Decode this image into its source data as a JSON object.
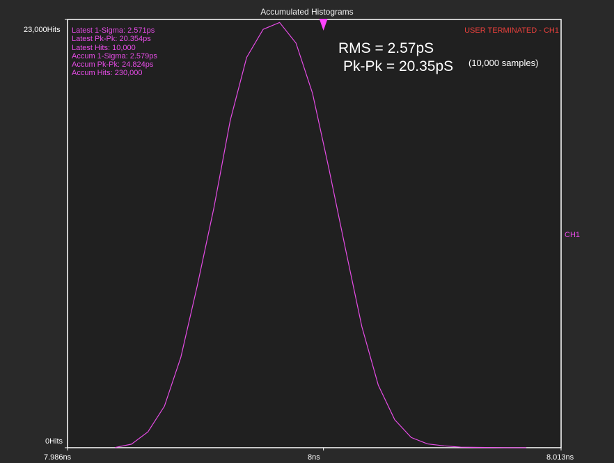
{
  "title": "Accumulated Histograms",
  "chart_data": {
    "type": "line",
    "title": "Accumulated Histograms",
    "xlabel": "",
    "ylabel": "",
    "x_unit": "ns",
    "xlim": [
      7.986,
      8.013
    ],
    "ylim": [
      0,
      23000
    ],
    "x_ticks": [
      "7.986ns",
      "8ns",
      "8.013ns"
    ],
    "y_ticks": [
      "23,000Hits",
      "0Hits"
    ],
    "grid": false,
    "series": [
      {
        "name": "CH1",
        "color": "#e64ce6",
        "x": [
          7.9886,
          7.9895,
          7.9904,
          7.9913,
          7.9922,
          7.9931,
          7.994,
          7.9949,
          7.9958,
          7.9967,
          7.9976,
          7.9985,
          7.9994,
          8.0003,
          8.0012,
          8.0021,
          8.003,
          8.0039,
          8.0048,
          8.0057,
          8.0066,
          8.0075,
          8.0084,
          8.0093,
          8.0102,
          8.0111
        ],
        "y": [
          10,
          190,
          850,
          2230,
          4860,
          8700,
          12850,
          17570,
          20960,
          22470,
          22840,
          21730,
          19040,
          14980,
          10710,
          6500,
          3360,
          1500,
          550,
          200,
          100,
          30,
          20,
          10,
          0,
          0
        ]
      }
    ],
    "marker": {
      "x": 8.0,
      "color": "#ff44ff",
      "shape": "triangle-down"
    }
  },
  "stats": [
    "Latest 1-Sigma: 2.571ps",
    "Latest Pk-Pk: 20.354ps",
    "Latest Hits: 10,000",
    "Accum 1-Sigma: 2.579ps",
    "Accum Pk-Pk: 24.824ps",
    "Accum Hits: 230,000"
  ],
  "status": "USER TERMINATED - CH1",
  "channel_label": "CH1",
  "annotation": {
    "rms": "RMS = 2.57pS",
    "pkpk": "Pk-Pk = 20.35pS",
    "samples": "(10,000 samples)"
  },
  "colors": {
    "background": "#292929",
    "plot_background": "#202020",
    "frame": "#ffffff",
    "trace": "#e64ce6",
    "status": "#e8403c"
  }
}
